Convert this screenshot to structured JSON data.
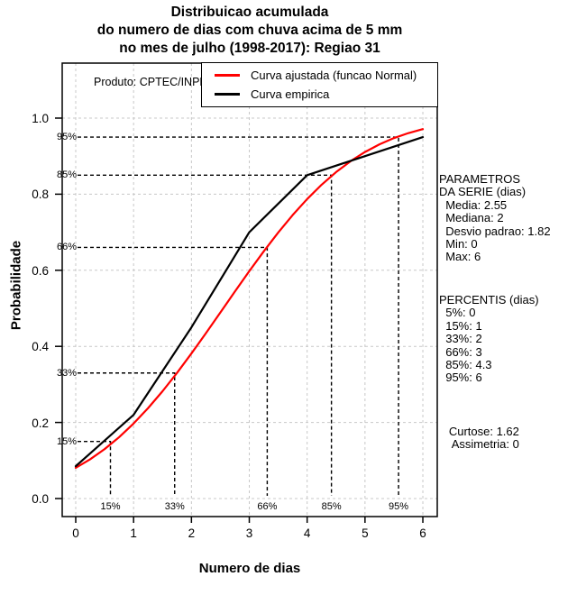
{
  "title": {
    "line1": "Distribuicao acumulada",
    "line2": "do numero de dias com chuva acima de 5 mm",
    "line3": "no mes de julho (1998-2017): Regiao 31"
  },
  "annotations": {
    "produto": "Produto: CPTEC/INPE"
  },
  "stats_panel": {
    "parametros": [
      "PARAMETROS",
      "DA SERIE (dias)",
      "  Media: 2.55",
      "  Mediana: 2",
      "  Desvio padrao: 1.82",
      "  Min: 0",
      "  Max: 6"
    ],
    "percentis": [
      "PERCENTIS (dias)",
      "  5%: 0",
      "  15%: 1",
      "  33%: 2",
      "  66%: 3",
      "  85%: 4.3",
      "  95%: 6"
    ],
    "momentos": [
      "   Curtose: 1.62",
      "    Assimetria: 0"
    ]
  },
  "chart_data": {
    "type": "line",
    "title": "Distribuicao acumulada do numero de dias com chuva acima de 5 mm no mes de julho (1998-2017): Regiao 31",
    "xlabel": "Numero de dias",
    "ylabel": "Probabilidade",
    "xlim": [
      0,
      6
    ],
    "ylim": [
      0,
      1
    ],
    "x_ticks": [
      0,
      1,
      2,
      3,
      4,
      5,
      6
    ],
    "y_ticks": [
      0,
      0.2,
      0.4,
      0.6,
      0.8,
      1.0
    ],
    "y_tick_labels": [
      "0.0",
      "0.2",
      "0.4",
      "0.6",
      "0.8",
      "1.0"
    ],
    "grid": true,
    "grid_color": "#c8c8c8",
    "legend_position": "top-inside",
    "series": [
      {
        "name": "Curva ajustada (funcao Normal)",
        "color": "#ff0000",
        "mean": 2.55,
        "sd": 1.82,
        "x": [
          0,
          0.25,
          0.5,
          0.75,
          1,
          1.25,
          1.5,
          1.75,
          2,
          2.25,
          2.5,
          2.75,
          3,
          3.25,
          3.5,
          3.75,
          4,
          4.25,
          4.5,
          4.75,
          5,
          5.25,
          5.5,
          5.75,
          6
        ],
        "y": [
          0.0806,
          0.1032,
          0.13,
          0.1613,
          0.1972,
          0.2375,
          0.282,
          0.3301,
          0.3813,
          0.4345,
          0.489,
          0.5438,
          0.5977,
          0.6497,
          0.6992,
          0.7452,
          0.7872,
          0.8249,
          0.858,
          0.8867,
          0.9109,
          0.931,
          0.9475,
          0.9606,
          0.971
        ]
      },
      {
        "name": "Curva empirica",
        "color": "#000000",
        "x": [
          0,
          1,
          2,
          3,
          4,
          5,
          6
        ],
        "y": [
          0.085,
          0.22,
          0.45,
          0.7,
          0.85,
          0.9,
          0.95
        ]
      }
    ],
    "percentile_guides": [
      {
        "label": "15%",
        "p": 0.15,
        "x": 0.6
      },
      {
        "label": "33%",
        "p": 0.33,
        "x": 1.71
      },
      {
        "label": "66%",
        "p": 0.66,
        "x": 3.31
      },
      {
        "label": "85%",
        "p": 0.85,
        "x": 4.42
      },
      {
        "label": "95%",
        "p": 0.95,
        "x": 5.58
      }
    ]
  }
}
